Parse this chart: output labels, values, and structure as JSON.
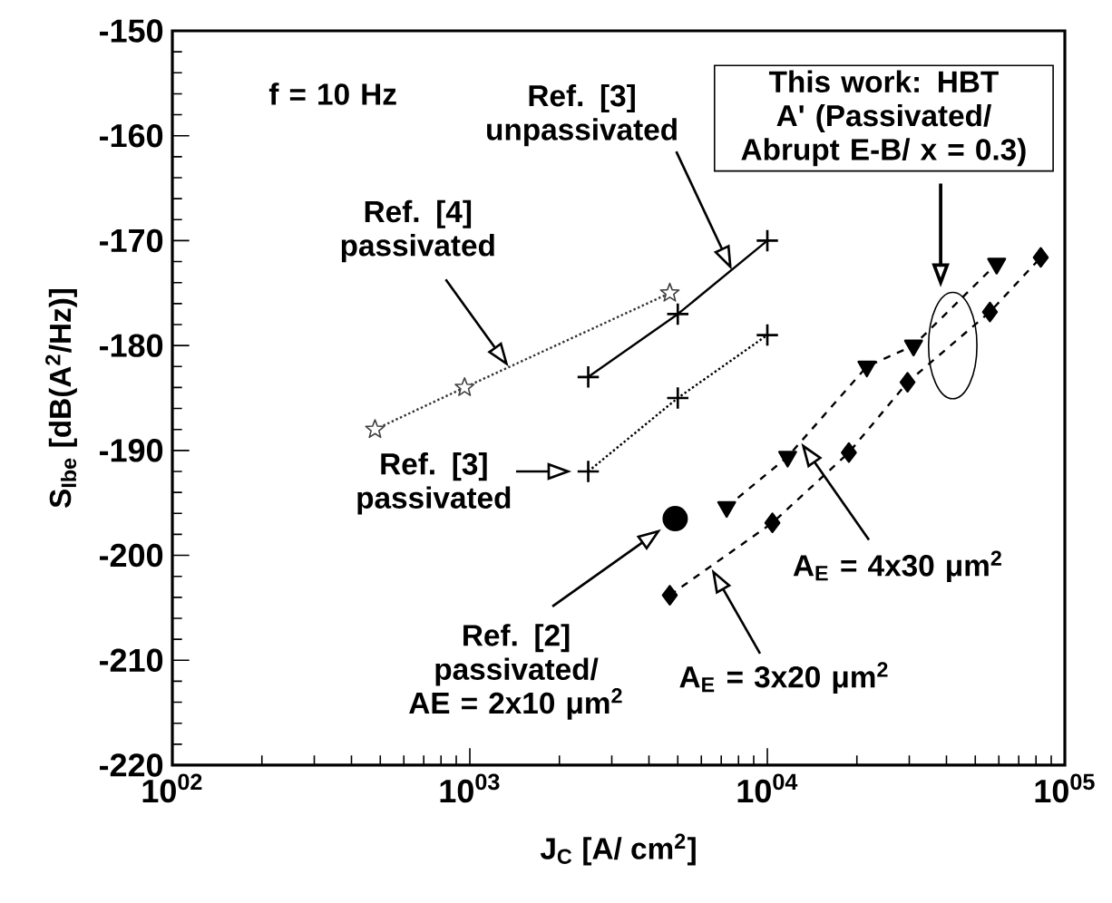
{
  "chart_data": {
    "type": "line",
    "xlabel": "J$_{C}$  [A/ cm$^{2}$]",
    "ylabel": "S$_{Ibe}$ [dB(A$^{2}$/Hz)]",
    "log": "x",
    "xlim": [
      100,
      100000
    ],
    "ylim": [
      -220,
      -150
    ],
    "xticks": [
      {
        "value": 100,
        "label": "10$^{02}$"
      },
      {
        "value": 1000,
        "label": "10$^{03}$"
      },
      {
        "value": 10000,
        "label": "10$^{04}$"
      },
      {
        "value": 100000,
        "label": "10$^{05}$"
      }
    ],
    "yticks": [
      -220,
      -210,
      -200,
      -190,
      -180,
      -170,
      -160,
      -150
    ],
    "grid": false,
    "annotations": [
      "f = 10 Hz",
      "This work: HBT A' (Passivated/ Abrupt E-B/ x = 0.3)",
      "Ref. [4] passivated",
      "Ref. [3] unpassivated",
      {
        "text": "Ref. [3] passivated",
        "x": 2200,
        "y": -192
      },
      "Ref. [2] passivated/ AE = 2x10 μm$^{2}$",
      "A$_{E}$ = 4x30 μm$^{2}$",
      "A$_{E}$ = 3x20 μm$^{2}$"
    ],
    "series": [
      {
        "color": "#333333",
        "x": [
          480,
          960,
          4700
        ],
        "values": [
          -188,
          -184,
          -175
        ],
        "marker": "star",
        "line_style": "dotted"
      },
      {
        "color": "#000000",
        "x": [
          2500,
          5000,
          10000
        ],
        "values": [
          -183,
          -177,
          -170
        ],
        "marker": "cross",
        "line_style": "solid"
      },
      {
        "color": "#000000",
        "x": [
          2500,
          5000,
          10000
        ],
        "values": [
          -192,
          -185,
          -179
        ],
        "marker": "cross",
        "line_style": "dotted"
      },
      {
        "color": "#000000",
        "type": "scatter",
        "x": [
          4900
        ],
        "values": [
          -196.5
        ],
        "marker": "circle"
      },
      {
        "color": "#000000",
        "x": [
          7300,
          11700,
          21600,
          31000,
          59000
        ],
        "values": [
          -195.4,
          -190.6,
          -182,
          -180,
          -172.2
        ],
        "marker": "triangle",
        "line_style": "dashed"
      },
      {
        "color": "#000000",
        "x": [
          4700,
          10400,
          18800,
          29600,
          56000,
          83000
        ],
        "values": [
          -203.8,
          -196.9,
          -190.2,
          -183.5,
          -176.8,
          -171.6
        ],
        "marker": "diamond",
        "line_style": "dashed"
      }
    ]
  }
}
